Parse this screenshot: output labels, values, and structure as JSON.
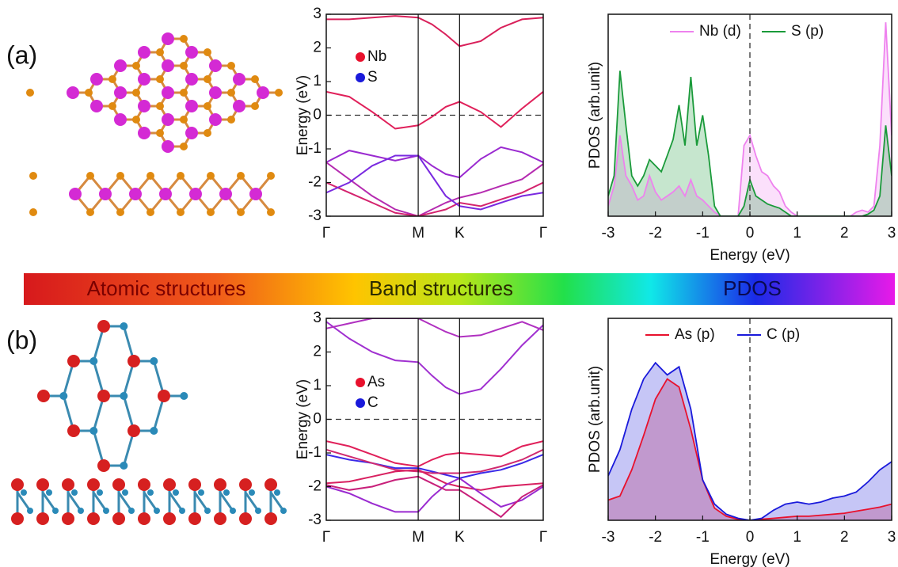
{
  "panels": [
    {
      "label": "(a)"
    },
    {
      "label": "(b)"
    }
  ],
  "banner": [
    "Atomic structures",
    "Band structures",
    "PDOS"
  ],
  "chart_data": [
    {
      "type": "line",
      "ylabel": "Energy (eV)",
      "x": [
        0,
        0.25,
        0.5,
        0.75,
        1,
        1.15,
        1.3,
        1.45,
        1.68,
        1.9,
        2.13,
        2.36
      ],
      "xlim": [
        0,
        2.36
      ],
      "xticks": [
        {
          "value": 0,
          "label": "Γ"
        },
        {
          "value": 1,
          "label": "M"
        },
        {
          "value": 1.45,
          "label": "K"
        },
        {
          "value": 2.36,
          "label": "Γ"
        }
      ],
      "ylim": [
        -3,
        3
      ],
      "yticks": [
        -3,
        -2,
        -1,
        0,
        1,
        2,
        3
      ],
      "reference_line": 0,
      "legend": [
        {
          "name": "Nb",
          "color": "#e8112d"
        },
        {
          "name": "S",
          "color": "#1a1adb"
        }
      ],
      "bands": [
        {
          "color": "#d9205a",
          "values": [
            2.85,
            2.85,
            2.9,
            2.95,
            2.9,
            2.7,
            2.4,
            2.05,
            2.2,
            2.6,
            2.85,
            2.9
          ]
        },
        {
          "color": "#e0205a",
          "values": [
            0.7,
            0.55,
            0.1,
            -0.4,
            -0.3,
            -0.05,
            0.25,
            0.4,
            0.1,
            -0.35,
            0.2,
            0.7
          ]
        },
        {
          "color": "#9a2ad0",
          "values": [
            -1.4,
            -1.05,
            -1.2,
            -1.35,
            -1.2,
            -1.5,
            -1.75,
            -1.85,
            -1.3,
            -0.95,
            -1.1,
            -1.4
          ]
        },
        {
          "color": "#b52bb0",
          "values": [
            -1.4,
            -1.9,
            -2.4,
            -2.8,
            -3,
            -2.8,
            -2.6,
            -2.45,
            -2.3,
            -2.1,
            -1.9,
            -1.45
          ]
        },
        {
          "color": "#d4236e",
          "values": [
            -2.0,
            -2.3,
            -2.6,
            -2.9,
            -3,
            -2.9,
            -2.8,
            -2.6,
            -2.7,
            -2.5,
            -2.3,
            -2.0
          ]
        },
        {
          "color": "#7a2ae0",
          "values": [
            -2.3,
            -2.0,
            -1.5,
            -1.2,
            -1.2,
            -1.8,
            -2.4,
            -2.7,
            -2.8,
            -2.6,
            -2.4,
            -2.3
          ]
        }
      ]
    },
    {
      "type": "area",
      "xlabel": "Energy (eV)",
      "ylabel": "PDOS (arb.unit)",
      "x": [
        -3,
        -2.875,
        -2.75,
        -2.625,
        -2.5,
        -2.375,
        -2.25,
        -2.125,
        -2,
        -1.875,
        -1.75,
        -1.625,
        -1.5,
        -1.375,
        -1.25,
        -1.125,
        -1,
        -0.875,
        -0.75,
        -0.625,
        -0.5,
        -0.375,
        -0.25,
        -0.125,
        0,
        0.125,
        0.25,
        0.375,
        0.5,
        0.625,
        0.75,
        0.875,
        1,
        1.125,
        1.25,
        1.375,
        1.5,
        1.625,
        1.75,
        1.875,
        2,
        2.125,
        2.25,
        2.375,
        2.5,
        2.625,
        2.75,
        2.875,
        3
      ],
      "xlim": [
        -3,
        3
      ],
      "xticks": [
        -3,
        -2,
        -1,
        0,
        1,
        2,
        3
      ],
      "ylim": [
        0,
        1
      ],
      "reference_line": 0,
      "series": [
        {
          "name": "Nb (d)",
          "color": "#ee82ee",
          "values": [
            0.05,
            0.15,
            0.4,
            0.2,
            0.15,
            0.08,
            0.1,
            0.2,
            0.12,
            0.08,
            0.1,
            0.12,
            0.15,
            0.1,
            0.18,
            0.1,
            0.08,
            0.05,
            0.02,
            0,
            0,
            0,
            0,
            0.35,
            0.4,
            0.3,
            0.22,
            0.2,
            0.15,
            0.12,
            0.05,
            0.02,
            0,
            0,
            0,
            0,
            0,
            0,
            0,
            0,
            0,
            0,
            0.02,
            0.03,
            0.02,
            0.05,
            0.35,
            0.96,
            0.4
          ]
        },
        {
          "name": "S (p)",
          "color": "#1a9a3a",
          "values": [
            0.1,
            0.2,
            0.72,
            0.45,
            0.2,
            0.15,
            0.2,
            0.28,
            0.25,
            0.22,
            0.3,
            0.38,
            0.55,
            0.35,
            0.69,
            0.35,
            0.5,
            0.3,
            0.05,
            0,
            0,
            0,
            0,
            0.05,
            0.18,
            0.1,
            0.08,
            0.06,
            0.05,
            0.04,
            0.02,
            0,
            0,
            0,
            0,
            0,
            0,
            0,
            0,
            0,
            0,
            0,
            0,
            0,
            0.01,
            0.03,
            0.1,
            0.45,
            0.2
          ]
        }
      ]
    },
    {
      "type": "line",
      "ylabel": "Energy (eV)",
      "x": [
        0,
        0.25,
        0.5,
        0.75,
        1,
        1.15,
        1.3,
        1.45,
        1.68,
        1.9,
        2.13,
        2.36
      ],
      "xlim": [
        0,
        2.36
      ],
      "xticks": [
        {
          "value": 0,
          "label": "Γ"
        },
        {
          "value": 1,
          "label": "M"
        },
        {
          "value": 1.45,
          "label": "K"
        },
        {
          "value": 2.36,
          "label": "Γ"
        }
      ],
      "ylim": [
        -3,
        3
      ],
      "yticks": [
        -3,
        -2,
        -1,
        0,
        1,
        2,
        3
      ],
      "reference_line": 0,
      "legend": [
        {
          "name": "As",
          "color": "#e8112d"
        },
        {
          "name": "C",
          "color": "#1a1adb"
        }
      ],
      "bands": [
        {
          "color": "#a030d0",
          "values": [
            2.9,
            2.4,
            2.0,
            1.75,
            1.7,
            1.3,
            0.95,
            0.75,
            0.9,
            1.5,
            2.2,
            2.8
          ]
        },
        {
          "color": "#b030c0",
          "values": [
            2.7,
            2.85,
            3,
            3,
            3,
            2.8,
            2.6,
            2.45,
            2.5,
            2.7,
            2.9,
            2.65
          ]
        },
        {
          "color": "#e0205a",
          "values": [
            -0.65,
            -0.8,
            -1.05,
            -1.3,
            -1.4,
            -1.2,
            -1.05,
            -1.0,
            -1.05,
            -1.1,
            -0.8,
            -0.65
          ]
        },
        {
          "color": "#3a2ae8",
          "values": [
            -1.05,
            -1.2,
            -1.3,
            -1.45,
            -1.45,
            -1.55,
            -1.65,
            -1.75,
            -1.6,
            -1.5,
            -1.3,
            -1.05
          ]
        },
        {
          "color": "#d02a70",
          "values": [
            -0.9,
            -1.1,
            -1.3,
            -1.5,
            -1.55,
            -1.6,
            -1.6,
            -1.6,
            -1.55,
            -1.4,
            -1.2,
            -0.9
          ]
        },
        {
          "color": "#d82060",
          "values": [
            -1.9,
            -1.85,
            -1.7,
            -1.55,
            -1.5,
            -1.7,
            -1.9,
            -2.0,
            -2.1,
            -2.0,
            -1.95,
            -1.9
          ]
        },
        {
          "color": "#9a2ad0",
          "values": [
            -2.0,
            -2.2,
            -2.5,
            -2.75,
            -2.75,
            -2.3,
            -1.95,
            -1.75,
            -2.2,
            -2.6,
            -2.4,
            -2.0
          ]
        },
        {
          "color": "#c8207a",
          "values": [
            -1.95,
            -2.1,
            -2.0,
            -1.8,
            -1.7,
            -1.9,
            -2.1,
            -2.1,
            -2.5,
            -2.9,
            -2.3,
            -1.95
          ]
        }
      ]
    },
    {
      "type": "area",
      "xlabel": "Energy (eV)",
      "ylabel": "PDOS (arb.unit)",
      "x": [
        -3,
        -2.75,
        -2.5,
        -2.25,
        -2,
        -1.75,
        -1.5,
        -1.25,
        -1,
        -0.75,
        -0.5,
        -0.25,
        0,
        0.25,
        0.5,
        0.75,
        1,
        1.25,
        1.5,
        1.75,
        2,
        2.25,
        2.5,
        2.75,
        3
      ],
      "xlim": [
        -3,
        3
      ],
      "xticks": [
        -3,
        -2,
        -1,
        0,
        1,
        2,
        3
      ],
      "ylim": [
        0,
        1
      ],
      "reference_line": 0,
      "series": [
        {
          "name": "As (p)",
          "color": "#e8112d",
          "values": [
            0.1,
            0.12,
            0.25,
            0.42,
            0.6,
            0.7,
            0.66,
            0.45,
            0.2,
            0.06,
            0.02,
            0.005,
            0,
            0.005,
            0.01,
            0.015,
            0.02,
            0.02,
            0.025,
            0.03,
            0.035,
            0.045,
            0.055,
            0.065,
            0.08
          ]
        },
        {
          "name": "C (p)",
          "color": "#1a1adb",
          "values": [
            0.22,
            0.35,
            0.55,
            0.7,
            0.78,
            0.72,
            0.76,
            0.55,
            0.2,
            0.08,
            0.03,
            0.01,
            0,
            0.01,
            0.05,
            0.08,
            0.09,
            0.08,
            0.09,
            0.11,
            0.12,
            0.14,
            0.19,
            0.25,
            0.29
          ]
        }
      ]
    }
  ]
}
